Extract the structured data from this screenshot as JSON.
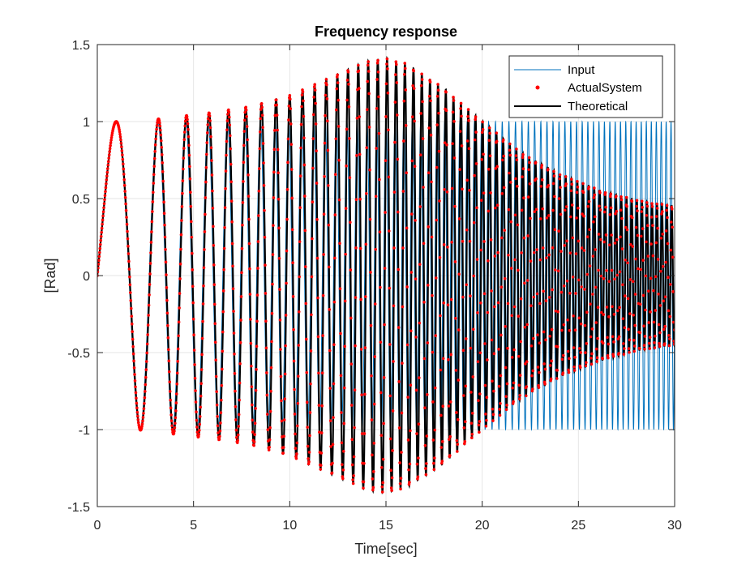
{
  "chart_data": {
    "type": "line",
    "title": "Frequency response",
    "xlabel": "Time[sec]",
    "ylabel": "[Rad]",
    "xlim": [
      0,
      30
    ],
    "ylim": [
      -1.5,
      1.5
    ],
    "xticks": [
      0,
      5,
      10,
      15,
      20,
      25,
      30
    ],
    "yticks": [
      -1.5,
      -1,
      -0.5,
      0,
      0.5,
      1,
      1.5
    ],
    "xtick_labels": [
      "0",
      "5",
      "10",
      "15",
      "20",
      "25",
      "30"
    ],
    "ytick_labels": [
      "-1.5",
      "-1",
      "-0.5",
      "0",
      "0.5",
      "1",
      "1.5"
    ],
    "grid": true,
    "legend_position": "top-right",
    "chirp": {
      "f0_hz": 0.2,
      "f1_hz": 4.0,
      "t1_sec": 30
    },
    "response_envelope": {
      "t": [
        0,
        2,
        4,
        6,
        8,
        10,
        12,
        14,
        15,
        16,
        18,
        20,
        22,
        24,
        26,
        28,
        30
      ],
      "gain": [
        1.0,
        1.0,
        1.03,
        1.06,
        1.1,
        1.17,
        1.28,
        1.39,
        1.41,
        1.38,
        1.22,
        1.0,
        0.8,
        0.66,
        0.56,
        0.49,
        0.45
      ]
    },
    "series": [
      {
        "name": "Input",
        "style": "line",
        "color": "#0072BD"
      },
      {
        "name": "ActualSystem",
        "style": "markers",
        "color": "#FF0000"
      },
      {
        "name": "Theoretical",
        "style": "line",
        "color": "#000000"
      }
    ]
  }
}
